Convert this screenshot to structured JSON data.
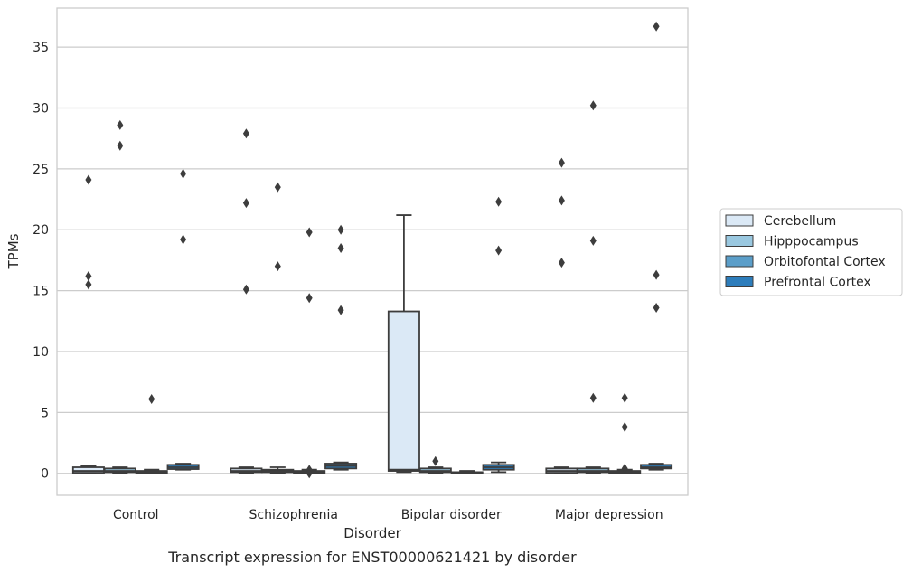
{
  "chart_data": {
    "type": "box",
    "xlabel": "Disorder",
    "ylabel": "TPMs",
    "caption": "Transcript expression for ENST00000621421 by disorder",
    "ylim": [
      -1.8,
      38.2
    ],
    "yticks": [
      0,
      5,
      10,
      15,
      20,
      25,
      30,
      35
    ],
    "grid": true,
    "legend_position": "right",
    "categories": [
      "Control",
      "Schizophrenia",
      "Bipolar disorder",
      "Major depression"
    ],
    "series": [
      {
        "name": "Cerebellum",
        "color": "#dbe9f6",
        "boxes": [
          {
            "whislo": 0.0,
            "q1": 0.05,
            "med": 0.2,
            "q3": 0.5,
            "whishi": 0.6,
            "fliers": [
              24.1,
              16.2,
              15.5
            ]
          },
          {
            "whislo": 0.05,
            "q1": 0.1,
            "med": 0.2,
            "q3": 0.4,
            "whishi": 0.5,
            "fliers": [
              27.9,
              22.2,
              15.1
            ]
          },
          {
            "whislo": 0.1,
            "q1": 0.2,
            "med": 0.3,
            "q3": 13.3,
            "whishi": 21.2,
            "fliers": []
          },
          {
            "whislo": 0.0,
            "q1": 0.05,
            "med": 0.2,
            "q3": 0.4,
            "whishi": 0.5,
            "fliers": [
              25.5,
              22.4,
              17.3
            ]
          }
        ]
      },
      {
        "name": "Hipppocampus",
        "color": "#9ac8e0",
        "boxes": [
          {
            "whislo": 0.0,
            "q1": 0.1,
            "med": 0.2,
            "q3": 0.4,
            "whishi": 0.5,
            "fliers": [
              28.6,
              26.9
            ]
          },
          {
            "whislo": 0.0,
            "q1": 0.1,
            "med": 0.2,
            "q3": 0.3,
            "whishi": 0.5,
            "fliers": [
              23.5,
              17.0
            ]
          },
          {
            "whislo": 0.0,
            "q1": 0.1,
            "med": 0.2,
            "q3": 0.4,
            "whishi": 0.5,
            "fliers": [
              1.0
            ]
          },
          {
            "whislo": 0.0,
            "q1": 0.1,
            "med": 0.2,
            "q3": 0.4,
            "whishi": 0.5,
            "fliers": [
              30.2,
              19.1,
              6.2
            ]
          }
        ]
      },
      {
        "name": "Orbitofontal Cortex",
        "color": "#5b9ec9",
        "boxes": [
          {
            "whislo": 0.0,
            "q1": 0.0,
            "med": 0.1,
            "q3": 0.2,
            "whishi": 0.3,
            "fliers": [
              6.1
            ]
          },
          {
            "whislo": 0.0,
            "q1": 0.0,
            "med": 0.1,
            "q3": 0.2,
            "whishi": 0.3,
            "fliers": [
              19.8,
              14.4,
              0.3,
              0.0
            ]
          },
          {
            "whislo": 0.0,
            "q1": 0.0,
            "med": 0.05,
            "q3": 0.1,
            "whishi": 0.2,
            "fliers": []
          },
          {
            "whislo": 0.0,
            "q1": 0.0,
            "med": 0.1,
            "q3": 0.2,
            "whishi": 0.3,
            "fliers": [
              6.2,
              3.8,
              0.4
            ]
          }
        ]
      },
      {
        "name": "Prefrontal Cortex",
        "color": "#2d7dbb",
        "boxes": [
          {
            "whislo": 0.3,
            "q1": 0.35,
            "med": 0.5,
            "q3": 0.7,
            "whishi": 0.8,
            "fliers": [
              24.6,
              19.2
            ]
          },
          {
            "whislo": 0.3,
            "q1": 0.4,
            "med": 0.6,
            "q3": 0.8,
            "whishi": 0.9,
            "fliers": [
              20.0,
              18.5,
              13.4
            ]
          },
          {
            "whislo": 0.1,
            "q1": 0.3,
            "med": 0.5,
            "q3": 0.7,
            "whishi": 0.9,
            "fliers": [
              22.3,
              18.3
            ]
          },
          {
            "whislo": 0.3,
            "q1": 0.4,
            "med": 0.5,
            "q3": 0.7,
            "whishi": 0.8,
            "fliers": [
              36.7,
              16.3,
              13.6
            ]
          }
        ]
      }
    ]
  }
}
